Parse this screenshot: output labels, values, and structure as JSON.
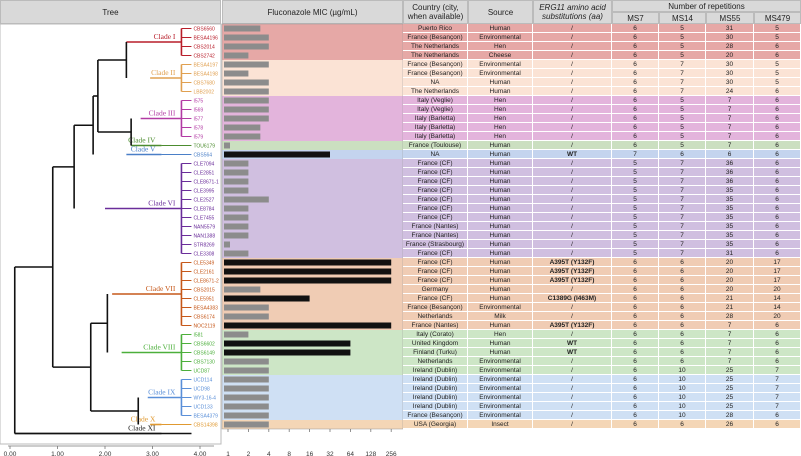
{
  "headers": {
    "tree": "Tree",
    "mic": "Fluconazole MIC (µg/mL)",
    "country": "Country (city, when available)",
    "source": "Source",
    "erg": "ERG11 amino acid substitutions (aa)",
    "reps": "Number of repetitions",
    "ms7": "MS7",
    "ms14": "MS14",
    "ms55": "MS55",
    "ms479": "MS479"
  },
  "tree_axis": [
    "0.00",
    "1.00",
    "2.00",
    "3.00",
    "4.00"
  ],
  "mic_axis": [
    "1",
    "2",
    "4",
    "8",
    "16",
    "32",
    "64",
    "128",
    "256"
  ],
  "clades": [
    {
      "label": "Clade I",
      "color": "#b81e2a",
      "bg": "#e6a8a6",
      "rows": [
        0,
        3
      ]
    },
    {
      "label": "Clade II",
      "color": "#e0a050",
      "bg": "#fbe3d5",
      "rows": [
        4,
        7
      ]
    },
    {
      "label": "Clade III",
      "color": "#b23ba4",
      "bg": "#e3b4dc",
      "rows": [
        8,
        12
      ]
    },
    {
      "label": "Clade IV",
      "color": "#4c8c2f",
      "bg": "#cbdfc0",
      "rows": [
        13,
        13
      ]
    },
    {
      "label": "Clade V",
      "color": "#4a7fc7",
      "bg": "#c4d4ee",
      "rows": [
        14,
        14
      ]
    },
    {
      "label": "Clade VI",
      "color": "#6a2d9a",
      "bg": "#d0bfe0",
      "rows": [
        15,
        25
      ]
    },
    {
      "label": "Clade VII",
      "color": "#c6581a",
      "bg": "#f0ccb4",
      "rows": [
        26,
        33
      ]
    },
    {
      "label": "Clade VIII",
      "color": "#4caf3b",
      "bg": "#cde6c6",
      "rows": [
        34,
        38
      ]
    },
    {
      "label": "Clade IX",
      "color": "#5a8fd8",
      "bg": "#cfe0f4",
      "rows": [
        39,
        43
      ]
    },
    {
      "label": "Clade X",
      "color": "#e09930",
      "bg": "#f4d6b6",
      "rows": [
        44,
        44
      ]
    },
    {
      "label": "Clade XI",
      "color": "#222222",
      "bg": "#dddddd",
      "rows": [
        45,
        45
      ]
    }
  ],
  "strains": [
    {
      "id": "CBS6560",
      "mic": 3,
      "country": "Puerto Rico",
      "source": "Human",
      "erg": "/",
      "ms7": "6",
      "ms14": "5",
      "ms55": "31",
      "ms479": "5"
    },
    {
      "id": "BESA4196",
      "mic": 4,
      "country": "France (Besançon)",
      "source": "Environmental",
      "erg": "/",
      "ms7": "6",
      "ms14": "5",
      "ms55": "30",
      "ms479": "5"
    },
    {
      "id": "CBS2014",
      "mic": 4,
      "country": "The Netherlands",
      "source": "Hen",
      "erg": "/",
      "ms7": "6",
      "ms14": "5",
      "ms55": "28",
      "ms479": "6"
    },
    {
      "id": "CBS2742",
      "mic": 2,
      "country": "The Netherlands",
      "source": "Cheese",
      "erg": "/",
      "ms7": "6",
      "ms14": "5",
      "ms55": "20",
      "ms479": "6"
    },
    {
      "id": "BESA4197",
      "mic": 4,
      "country": "France (Besançon)",
      "source": "Environmental",
      "erg": "/",
      "ms7": "6",
      "ms14": "7",
      "ms55": "30",
      "ms479": "5"
    },
    {
      "id": "BESA4198",
      "mic": 2,
      "country": "France (Besançon)",
      "source": "Environmental",
      "erg": "/",
      "ms7": "6",
      "ms14": "7",
      "ms55": "30",
      "ms479": "5"
    },
    {
      "id": "CBS7680",
      "mic": 4,
      "country": "NA",
      "source": "Human",
      "erg": "/",
      "ms7": "6",
      "ms14": "7",
      "ms55": "30",
      "ms479": "5"
    },
    {
      "id": "LBB2002",
      "mic": 4,
      "country": "The Netherlands",
      "source": "Human",
      "erg": "/",
      "ms7": "6",
      "ms14": "7",
      "ms55": "24",
      "ms479": "6"
    },
    {
      "id": "I575",
      "mic": 4,
      "country": "Italy (Veglie)",
      "source": "Hen",
      "erg": "/",
      "ms7": "6",
      "ms14": "5",
      "ms55": "7",
      "ms479": "6"
    },
    {
      "id": "I569",
      "mic": 4,
      "country": "Italy (Veglie)",
      "source": "Hen",
      "erg": "/",
      "ms7": "6",
      "ms14": "5",
      "ms55": "7",
      "ms479": "6"
    },
    {
      "id": "I577",
      "mic": 4,
      "country": "Italy (Barletta)",
      "source": "Hen",
      "erg": "/",
      "ms7": "6",
      "ms14": "5",
      "ms55": "7",
      "ms479": "6"
    },
    {
      "id": "I578",
      "mic": 3,
      "country": "Italy (Barletta)",
      "source": "Hen",
      "erg": "/",
      "ms7": "6",
      "ms14": "5",
      "ms55": "7",
      "ms479": "6"
    },
    {
      "id": "I579",
      "mic": 3,
      "country": "Italy (Barletta)",
      "source": "Hen",
      "erg": "/",
      "ms7": "6",
      "ms14": "5",
      "ms55": "7",
      "ms479": "6"
    },
    {
      "id": "TOU6179",
      "mic": 1,
      "country": "France (Toulouse)",
      "source": "Human",
      "erg": "/",
      "ms7": "6",
      "ms14": "5",
      "ms55": "7",
      "ms479": "6"
    },
    {
      "id": "CBS564",
      "mic": 32,
      "country": "NA",
      "source": "Human",
      "erg": "WT",
      "ms7": "7",
      "ms14": "6",
      "ms55": "6",
      "ms479": "6"
    },
    {
      "id": "CLE7094",
      "mic": 2,
      "country": "France (CF)",
      "source": "Human",
      "erg": "/",
      "ms7": "5",
      "ms14": "7",
      "ms55": "36",
      "ms479": "6"
    },
    {
      "id": "CLE2851",
      "mic": 2,
      "country": "France (CF)",
      "source": "Human",
      "erg": "/",
      "ms7": "5",
      "ms14": "7",
      "ms55": "36",
      "ms479": "6"
    },
    {
      "id": "CLE8671-1",
      "mic": 2,
      "country": "France (CF)",
      "source": "Human",
      "erg": "/",
      "ms7": "5",
      "ms14": "7",
      "ms55": "36",
      "ms479": "6"
    },
    {
      "id": "CLE3995",
      "mic": 2,
      "country": "France (CF)",
      "source": "Human",
      "erg": "/",
      "ms7": "5",
      "ms14": "7",
      "ms55": "35",
      "ms479": "6"
    },
    {
      "id": "CLE2527",
      "mic": 4,
      "country": "France (CF)",
      "source": "Human",
      "erg": "/",
      "ms7": "5",
      "ms14": "7",
      "ms55": "35",
      "ms479": "6"
    },
    {
      "id": "CLE8784",
      "mic": 2,
      "country": "France (CF)",
      "source": "Human",
      "erg": "/",
      "ms7": "5",
      "ms14": "7",
      "ms55": "35",
      "ms479": "6"
    },
    {
      "id": "CLE7455",
      "mic": 2,
      "country": "France (CF)",
      "source": "Human",
      "erg": "/",
      "ms7": "5",
      "ms14": "7",
      "ms55": "35",
      "ms479": "6"
    },
    {
      "id": "NAN5579",
      "mic": 2,
      "country": "France (Nantes)",
      "source": "Human",
      "erg": "/",
      "ms7": "5",
      "ms14": "7",
      "ms55": "35",
      "ms479": "6"
    },
    {
      "id": "NAN1388",
      "mic": 2,
      "country": "France (Nantes)",
      "source": "Human",
      "erg": "/",
      "ms7": "5",
      "ms14": "7",
      "ms55": "35",
      "ms479": "6"
    },
    {
      "id": "STR8269",
      "mic": 1,
      "country": "France (Strasbourg)",
      "source": "Human",
      "erg": "/",
      "ms7": "5",
      "ms14": "7",
      "ms55": "35",
      "ms479": "6"
    },
    {
      "id": "CLE3308",
      "mic": 2,
      "country": "France (CF)",
      "source": "Human",
      "erg": "/",
      "ms7": "5",
      "ms14": "7",
      "ms55": "31",
      "ms479": "6"
    },
    {
      "id": "CLE5349",
      "mic": 256,
      "country": "France (CF)",
      "source": "Human",
      "erg": "A395T (Y132F)",
      "ms7": "6",
      "ms14": "6",
      "ms55": "20",
      "ms479": "17"
    },
    {
      "id": "CLE2161",
      "mic": 256,
      "country": "France (CF)",
      "source": "Human",
      "erg": "A395T (Y132F)",
      "ms7": "6",
      "ms14": "6",
      "ms55": "20",
      "ms479": "17"
    },
    {
      "id": "CLE8671-2",
      "mic": 256,
      "country": "France (CF)",
      "source": "Human",
      "erg": "A395T (Y132F)",
      "ms7": "6",
      "ms14": "6",
      "ms55": "20",
      "ms479": "17"
    },
    {
      "id": "CBS2015",
      "mic": 3,
      "country": "Germany",
      "source": "Human",
      "erg": "/",
      "ms7": "6",
      "ms14": "6",
      "ms55": "20",
      "ms479": "20"
    },
    {
      "id": "CLE5951",
      "mic": 16,
      "country": "France (CF)",
      "source": "Human",
      "erg": "C1389G (I463M)",
      "ms7": "6",
      "ms14": "6",
      "ms55": "21",
      "ms479": "14"
    },
    {
      "id": "BESA4383",
      "mic": 4,
      "country": "France (Besançon)",
      "source": "Environmental",
      "erg": "/",
      "ms7": "6",
      "ms14": "6",
      "ms55": "21",
      "ms479": "14"
    },
    {
      "id": "CBS6174",
      "mic": 4,
      "country": "Netherlands",
      "source": "Milk",
      "erg": "/",
      "ms7": "6",
      "ms14": "6",
      "ms55": "28",
      "ms479": "20"
    },
    {
      "id": "NOC2119",
      "mic": 256,
      "country": "France (Nantes)",
      "source": "Human",
      "erg": "A395T (Y132F)",
      "ms7": "6",
      "ms14": "6",
      "ms55": "7",
      "ms479": "6"
    },
    {
      "id": "I581",
      "mic": 2,
      "country": "Italy (Corato)",
      "source": "Hen",
      "erg": "/",
      "ms7": "6",
      "ms14": "6",
      "ms55": "7",
      "ms479": "6"
    },
    {
      "id": "CBS6602",
      "mic": 64,
      "country": "United Kingdom",
      "source": "Human",
      "erg": "WT",
      "ms7": "6",
      "ms14": "6",
      "ms55": "7",
      "ms479": "6"
    },
    {
      "id": "CBS6149",
      "mic": 64,
      "country": "Finland (Turku)",
      "source": "Human",
      "erg": "WT",
      "ms7": "6",
      "ms14": "6",
      "ms55": "7",
      "ms479": "6"
    },
    {
      "id": "CBS7130",
      "mic": 4,
      "country": "Netherlands",
      "source": "Environmental",
      "erg": "/",
      "ms7": "6",
      "ms14": "6",
      "ms55": "7",
      "ms479": "6"
    },
    {
      "id": "UCD87",
      "mic": 4,
      "country": "Ireland (Dublin)",
      "source": "Environmental",
      "erg": "/",
      "ms7": "6",
      "ms14": "10",
      "ms55": "25",
      "ms479": "7"
    },
    {
      "id": "UCD114",
      "mic": 4,
      "country": "Ireland (Dublin)",
      "source": "Environmental",
      "erg": "/",
      "ms7": "6",
      "ms14": "10",
      "ms55": "25",
      "ms479": "7"
    },
    {
      "id": "UCD98",
      "mic": 4,
      "country": "Ireland (Dublin)",
      "source": "Environmental",
      "erg": "/",
      "ms7": "6",
      "ms14": "10",
      "ms55": "25",
      "ms479": "7"
    },
    {
      "id": "WY3-16-4",
      "mic": 4,
      "country": "Ireland (Dublin)",
      "source": "Environmental",
      "erg": "/",
      "ms7": "6",
      "ms14": "10",
      "ms55": "25",
      "ms479": "7"
    },
    {
      "id": "UCD133",
      "mic": 4,
      "country": "Ireland (Dublin)",
      "source": "Environmental",
      "erg": "/",
      "ms7": "6",
      "ms14": "10",
      "ms55": "25",
      "ms479": "7"
    },
    {
      "id": "BESA4379",
      "mic": 4,
      "country": "France (Besançon)",
      "source": "Environmental",
      "erg": "/",
      "ms7": "6",
      "ms14": "10",
      "ms55": "28",
      "ms479": "6"
    },
    {
      "id": "CBS14398",
      "mic": 4,
      "country": "USA (Georgia)",
      "source": "Insect",
      "erg": "/",
      "ms7": "6",
      "ms14": "6",
      "ms55": "26",
      "ms479": "6"
    }
  ]
}
